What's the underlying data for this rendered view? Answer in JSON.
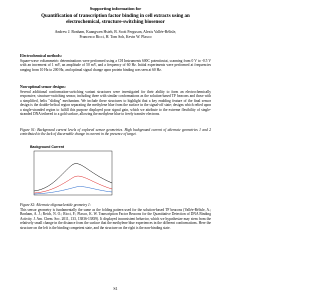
{
  "header": "Supporting information for",
  "title": "Quantification of transcription factor binding in cell extracts using an electrochemical, structure-switching biosensor",
  "authors": "Andrew J. Bonham, Kuangwen Hsieh, B. Scott Ferguson, Alexis Vallée-Bélisle, Francesco Ricci, H. Tom Soh, Kevin W. Plaxco",
  "sections": [
    {
      "heading": "Electrochemical methods:",
      "text": "Square-wave voltammetric determinations were performed using a CH Instruments 600C potentiostat, scanning from 0 V to -0.5 V with an increment of 1 mV, an amplitude of 50 mV, and a frequency of 60 Hz. Initial experiments were performed at frequencies ranging from 10 Hz to 200 Hz, and optimal signal change upon protein binding was seen at 60 Hz."
    },
    {
      "heading": "Non-optimal sensor designs:",
      "text": "Several additional conformation-switching variant structures were investigated for their ability to form an electrochemically responsive, structure-switching sensor, including three with similar conformations as the solution-based TF beacons and those with a simplified, helix \"sliding\" mechanism. We include these structures to highlight that a key enabling feature of the final sensor design is the double-helical region separating the methylene blue from the surface in the signal-off state; designs which relied upon a single-stranded region to fulfill this purpose displayed poor signal gain, which we attribute to the extreme flexibility of single-stranded DNA tethered to a gold surface, allowing the methylene blue to freely transfer electrons."
    }
  ],
  "figure_s1": {
    "caption": "Figure S1: Background current levels of explored sensor geometries. High background current of alternate geometries 1 and 2 contributed to the lack of discernable change in current in the presence of target.",
    "chart_title": "Background Current"
  },
  "figure_s2": {
    "caption": "Figure S2: Alternate oligonucleotide geometry 1:",
    "text": "This sensor geometry is fundamentally the same as the folding pattern used for the solution-based TF beacons (Vallée-Bélisle, A.; Bonham, A. J.; Reich, N. O.; Ricci, F.; Plaxco, K. W. Transcription Factor Beacons for the Quantitative Detection of DNA Binding Activity. J. Am. Chem. Soc. 2011, 133, 13836-13839). It displayed inconsistent behavior, which we hypothesize may stem from the relatively small change in the distance from the surface that the methylene blue experiences in the different conformations. Here the structure on the left is the binding competent state, and the structure on the right is the non-binding state."
  },
  "page_number": "S1"
}
